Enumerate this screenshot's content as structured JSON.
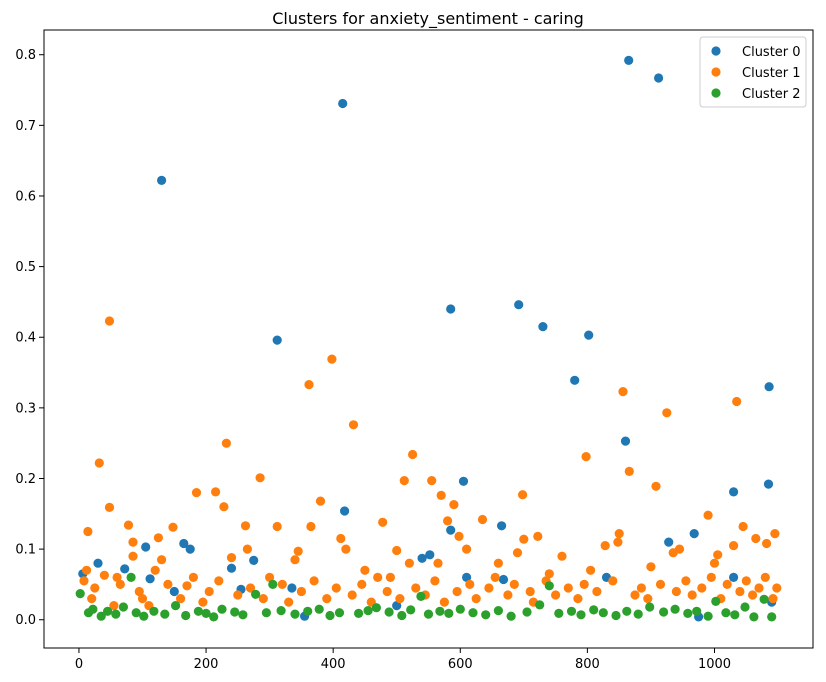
{
  "chart_data": {
    "type": "scatter",
    "title": "Clusters for anxiety_sentiment - caring",
    "xlabel": "",
    "ylabel": "",
    "xlim": [
      -55,
      1155
    ],
    "ylim": [
      -0.04,
      0.835
    ],
    "xticks": [
      0,
      200,
      400,
      600,
      800,
      1000
    ],
    "yticks": [
      0.0,
      0.1,
      0.2,
      0.3,
      0.4,
      0.5,
      0.6,
      0.7,
      0.8
    ],
    "grid": false,
    "legend_position": "top-right",
    "series": [
      {
        "name": "Cluster 0",
        "color": "#1f77b4",
        "points": [
          [
            6,
            0.065
          ],
          [
            30,
            0.08
          ],
          [
            72,
            0.072
          ],
          [
            105,
            0.103
          ],
          [
            112,
            0.058
          ],
          [
            130,
            0.622
          ],
          [
            165,
            0.108
          ],
          [
            175,
            0.1
          ],
          [
            240,
            0.073
          ],
          [
            255,
            0.043
          ],
          [
            275,
            0.084
          ],
          [
            312,
            0.396
          ],
          [
            335,
            0.045
          ],
          [
            355,
            0.005
          ],
          [
            415,
            0.731
          ],
          [
            418,
            0.154
          ],
          [
            500,
            0.02
          ],
          [
            540,
            0.087
          ],
          [
            552,
            0.092
          ],
          [
            585,
            0.44
          ],
          [
            585,
            0.127
          ],
          [
            605,
            0.196
          ],
          [
            610,
            0.06
          ],
          [
            665,
            0.133
          ],
          [
            668,
            0.057
          ],
          [
            692,
            0.446
          ],
          [
            730,
            0.415
          ],
          [
            780,
            0.339
          ],
          [
            802,
            0.403
          ],
          [
            830,
            0.06
          ],
          [
            860,
            0.253
          ],
          [
            865,
            0.792
          ],
          [
            912,
            0.767
          ],
          [
            928,
            0.11
          ],
          [
            968,
            0.122
          ],
          [
            975,
            0.004
          ],
          [
            1030,
            0.181
          ],
          [
            1086,
            0.33
          ],
          [
            1085,
            0.192
          ],
          [
            1030,
            0.06
          ],
          [
            150,
            0.04
          ],
          [
            1090,
            0.025
          ]
        ]
      },
      {
        "name": "Cluster 1",
        "color": "#ff7f0e",
        "points": [
          [
            8,
            0.055
          ],
          [
            12,
            0.07
          ],
          [
            14,
            0.125
          ],
          [
            32,
            0.222
          ],
          [
            40,
            0.063
          ],
          [
            48,
            0.423
          ],
          [
            48,
            0.159
          ],
          [
            60,
            0.06
          ],
          [
            78,
            0.134
          ],
          [
            85,
            0.11
          ],
          [
            85,
            0.09
          ],
          [
            120,
            0.07
          ],
          [
            125,
            0.116
          ],
          [
            130,
            0.085
          ],
          [
            148,
            0.131
          ],
          [
            170,
            0.048
          ],
          [
            185,
            0.18
          ],
          [
            215,
            0.181
          ],
          [
            228,
            0.16
          ],
          [
            232,
            0.25
          ],
          [
            240,
            0.088
          ],
          [
            262,
            0.133
          ],
          [
            265,
            0.1
          ],
          [
            285,
            0.201
          ],
          [
            300,
            0.06
          ],
          [
            312,
            0.132
          ],
          [
            340,
            0.085
          ],
          [
            345,
            0.097
          ],
          [
            362,
            0.333
          ],
          [
            365,
            0.132
          ],
          [
            380,
            0.168
          ],
          [
            398,
            0.369
          ],
          [
            412,
            0.115
          ],
          [
            420,
            0.1
          ],
          [
            432,
            0.276
          ],
          [
            450,
            0.07
          ],
          [
            478,
            0.138
          ],
          [
            490,
            0.06
          ],
          [
            500,
            0.098
          ],
          [
            512,
            0.197
          ],
          [
            520,
            0.08
          ],
          [
            525,
            0.234
          ],
          [
            555,
            0.197
          ],
          [
            565,
            0.08
          ],
          [
            570,
            0.176
          ],
          [
            580,
            0.14
          ],
          [
            590,
            0.163
          ],
          [
            598,
            0.118
          ],
          [
            610,
            0.1
          ],
          [
            635,
            0.142
          ],
          [
            660,
            0.08
          ],
          [
            690,
            0.095
          ],
          [
            698,
            0.177
          ],
          [
            700,
            0.114
          ],
          [
            722,
            0.118
          ],
          [
            740,
            0.065
          ],
          [
            760,
            0.09
          ],
          [
            798,
            0.231
          ],
          [
            805,
            0.07
          ],
          [
            828,
            0.105
          ],
          [
            848,
            0.11
          ],
          [
            850,
            0.122
          ],
          [
            856,
            0.323
          ],
          [
            866,
            0.21
          ],
          [
            900,
            0.075
          ],
          [
            908,
            0.189
          ],
          [
            925,
            0.293
          ],
          [
            935,
            0.095
          ],
          [
            945,
            0.1
          ],
          [
            990,
            0.148
          ],
          [
            1000,
            0.08
          ],
          [
            1005,
            0.092
          ],
          [
            1030,
            0.105
          ],
          [
            1035,
            0.309
          ],
          [
            1045,
            0.132
          ],
          [
            1065,
            0.115
          ],
          [
            1082,
            0.108
          ],
          [
            1095,
            0.122
          ],
          [
            20,
            0.03
          ],
          [
            25,
            0.045
          ],
          [
            55,
            0.02
          ],
          [
            65,
            0.05
          ],
          [
            95,
            0.04
          ],
          [
            100,
            0.03
          ],
          [
            110,
            0.02
          ],
          [
            140,
            0.05
          ],
          [
            160,
            0.03
          ],
          [
            180,
            0.06
          ],
          [
            195,
            0.025
          ],
          [
            205,
            0.04
          ],
          [
            220,
            0.055
          ],
          [
            250,
            0.035
          ],
          [
            270,
            0.045
          ],
          [
            290,
            0.03
          ],
          [
            320,
            0.05
          ],
          [
            330,
            0.025
          ],
          [
            350,
            0.04
          ],
          [
            370,
            0.055
          ],
          [
            390,
            0.03
          ],
          [
            405,
            0.045
          ],
          [
            430,
            0.035
          ],
          [
            445,
            0.05
          ],
          [
            460,
            0.025
          ],
          [
            470,
            0.06
          ],
          [
            485,
            0.04
          ],
          [
            505,
            0.03
          ],
          [
            530,
            0.045
          ],
          [
            545,
            0.035
          ],
          [
            560,
            0.055
          ],
          [
            575,
            0.025
          ],
          [
            595,
            0.04
          ],
          [
            615,
            0.05
          ],
          [
            625,
            0.03
          ],
          [
            645,
            0.045
          ],
          [
            655,
            0.06
          ],
          [
            675,
            0.035
          ],
          [
            685,
            0.05
          ],
          [
            710,
            0.04
          ],
          [
            715,
            0.025
          ],
          [
            735,
            0.055
          ],
          [
            750,
            0.035
          ],
          [
            770,
            0.045
          ],
          [
            785,
            0.03
          ],
          [
            795,
            0.05
          ],
          [
            815,
            0.04
          ],
          [
            840,
            0.055
          ],
          [
            875,
            0.035
          ],
          [
            885,
            0.045
          ],
          [
            895,
            0.03
          ],
          [
            915,
            0.05
          ],
          [
            940,
            0.04
          ],
          [
            955,
            0.055
          ],
          [
            965,
            0.035
          ],
          [
            980,
            0.045
          ],
          [
            995,
            0.06
          ],
          [
            1010,
            0.03
          ],
          [
            1020,
            0.05
          ],
          [
            1040,
            0.04
          ],
          [
            1050,
            0.055
          ],
          [
            1060,
            0.035
          ],
          [
            1070,
            0.045
          ],
          [
            1080,
            0.06
          ],
          [
            1092,
            0.03
          ],
          [
            1098,
            0.045
          ]
        ]
      },
      {
        "name": "Cluster 2",
        "color": "#2ca02c",
        "points": [
          [
            2,
            0.037
          ],
          [
            15,
            0.01
          ],
          [
            22,
            0.015
          ],
          [
            35,
            0.005
          ],
          [
            45,
            0.012
          ],
          [
            58,
            0.008
          ],
          [
            70,
            0.018
          ],
          [
            82,
            0.06
          ],
          [
            90,
            0.01
          ],
          [
            102,
            0.005
          ],
          [
            118,
            0.012
          ],
          [
            135,
            0.008
          ],
          [
            152,
            0.02
          ],
          [
            168,
            0.006
          ],
          [
            188,
            0.012
          ],
          [
            200,
            0.009
          ],
          [
            212,
            0.004
          ],
          [
            225,
            0.015
          ],
          [
            245,
            0.011
          ],
          [
            258,
            0.007
          ],
          [
            278,
            0.036
          ],
          [
            295,
            0.01
          ],
          [
            305,
            0.05
          ],
          [
            318,
            0.013
          ],
          [
            340,
            0.008
          ],
          [
            360,
            0.012
          ],
          [
            378,
            0.015
          ],
          [
            395,
            0.006
          ],
          [
            410,
            0.01
          ],
          [
            440,
            0.009
          ],
          [
            455,
            0.013
          ],
          [
            468,
            0.017
          ],
          [
            488,
            0.011
          ],
          [
            508,
            0.006
          ],
          [
            522,
            0.014
          ],
          [
            538,
            0.033
          ],
          [
            550,
            0.008
          ],
          [
            568,
            0.012
          ],
          [
            582,
            0.009
          ],
          [
            600,
            0.015
          ],
          [
            620,
            0.01
          ],
          [
            640,
            0.007
          ],
          [
            660,
            0.013
          ],
          [
            680,
            0.005
          ],
          [
            705,
            0.011
          ],
          [
            725,
            0.021
          ],
          [
            740,
            0.048
          ],
          [
            755,
            0.009
          ],
          [
            775,
            0.012
          ],
          [
            790,
            0.007
          ],
          [
            810,
            0.014
          ],
          [
            825,
            0.01
          ],
          [
            845,
            0.006
          ],
          [
            862,
            0.012
          ],
          [
            880,
            0.008
          ],
          [
            898,
            0.018
          ],
          [
            920,
            0.011
          ],
          [
            938,
            0.015
          ],
          [
            958,
            0.009
          ],
          [
            972,
            0.012
          ],
          [
            990,
            0.005
          ],
          [
            1002,
            0.026
          ],
          [
            1018,
            0.01
          ],
          [
            1032,
            0.007
          ],
          [
            1048,
            0.018
          ],
          [
            1062,
            0.004
          ],
          [
            1078,
            0.029
          ],
          [
            1090,
            0.004
          ]
        ]
      }
    ]
  }
}
